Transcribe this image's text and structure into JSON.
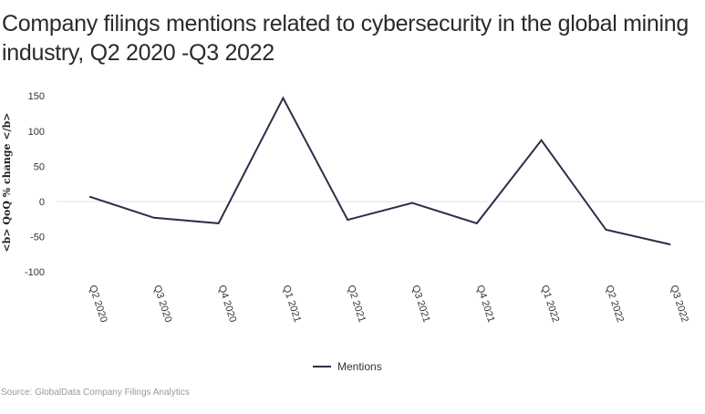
{
  "chart_data": {
    "type": "line",
    "title": "Company filings mentions related to cybersecurity in the global mining industry, Q2 2020 -Q3 2022",
    "xlabel": "",
    "ylabel": "<b> QoQ % change </b>",
    "categories": [
      "Q2 2020",
      "Q3 2020",
      "Q4 2020",
      "Q1 2021",
      "Q2 2021",
      "Q3 2021",
      "Q4 2021",
      "Q1 2022",
      "Q2 2022",
      "Q3 2022"
    ],
    "series": [
      {
        "name": "Mentions",
        "values": [
          7,
          -23,
          -31,
          147,
          -26,
          -2,
          -31,
          87,
          -40,
          -61
        ],
        "color": "#2f2c4a"
      }
    ],
    "yticks": [
      150,
      100,
      50,
      0,
      -50,
      -100
    ],
    "ylim": [
      -100,
      150
    ],
    "grid": "zero-line only",
    "legend": "bottom-center",
    "source": "Source: GlobalData Company Filings Analytics"
  }
}
